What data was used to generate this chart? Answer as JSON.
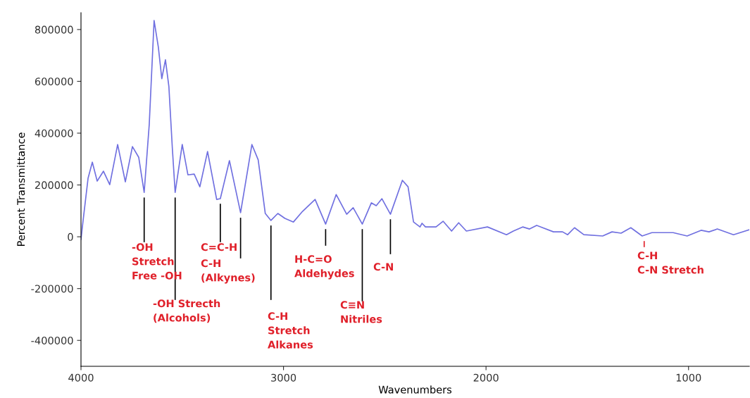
{
  "chart_data": {
    "type": "line",
    "xlabel": "Wavenumbers",
    "ylabel": "Percent Transmittance",
    "xlim": [
      4000,
      700
    ],
    "xticks": [
      4000,
      3000,
      2000,
      1000
    ],
    "ylim": [
      -500000,
      865000
    ],
    "yticks": [
      -400000,
      -200000,
      0,
      200000,
      400000,
      600000,
      800000
    ],
    "grid": false,
    "legend": false,
    "marker": "none",
    "line_style": "solid",
    "series": [
      {
        "color": "#7070e0",
        "x": [
          4000,
          3990,
          3965,
          3944,
          3920,
          3889,
          3858,
          3819,
          3781,
          3746,
          3715,
          3688,
          3663,
          3639,
          3618,
          3601,
          3583,
          3566,
          3549,
          3535,
          3500,
          3472,
          3441,
          3413,
          3375,
          3330,
          3312,
          3267,
          3212,
          3156,
          3125,
          3090,
          3062,
          3028,
          2993,
          2951,
          2906,
          2844,
          2792,
          2740,
          2688,
          2656,
          2611,
          2566,
          2542,
          2514,
          2472,
          2413,
          2385,
          2358,
          2326,
          2316,
          2299,
          2247,
          2212,
          2170,
          2135,
          2097,
          1993,
          1899,
          1865,
          1819,
          1785,
          1750,
          1667,
          1622,
          1597,
          1563,
          1517,
          1424,
          1378,
          1333,
          1285,
          1229,
          1181,
          1076,
          1007,
          938,
          899,
          858,
          778,
          701
        ],
        "values": [
          -10000,
          60000,
          226000,
          288000,
          215000,
          253000,
          201000,
          356000,
          212000,
          348000,
          307000,
          171000,
          433000,
          835000,
          732000,
          610000,
          683000,
          580000,
          343000,
          171000,
          356000,
          239000,
          242000,
          193000,
          329000,
          144000,
          147000,
          294000,
          93000,
          356000,
          297000,
          90000,
          63000,
          90000,
          71000,
          57000,
          98000,
          144000,
          49000,
          163000,
          87000,
          112000,
          49000,
          131000,
          120000,
          147000,
          87000,
          218000,
          193000,
          57000,
          38000,
          52000,
          38000,
          38000,
          60000,
          22000,
          54000,
          22000,
          38000,
          8000,
          22000,
          38000,
          30000,
          44000,
          19000,
          19000,
          8000,
          35000,
          8000,
          3000,
          19000,
          14000,
          35000,
          3000,
          16000,
          16000,
          3000,
          25000,
          19000,
          30000,
          8000,
          27000
        ]
      }
    ],
    "annotations": [
      {
        "text": "-OH\nStretch\nFree -OH",
        "x": 3688,
        "y": 171000
      },
      {
        "text": "-OH Strecth\n(Alcohols)",
        "x": 3535,
        "y": 171000
      },
      {
        "text": "C=C-H",
        "x": 3312,
        "y": 147000
      },
      {
        "text": "C-H\n(Alkynes)",
        "x": 3212,
        "y": 93000
      },
      {
        "text": "C-H\nStretch\nAlkanes",
        "x": 3062,
        "y": 63000
      },
      {
        "text": "H-C=O\nAldehydes",
        "x": 2792,
        "y": 49000
      },
      {
        "text": "C≡N\nNitriles",
        "x": 2611,
        "y": 49000
      },
      {
        "text": "C-N",
        "x": 2472,
        "y": 87000
      },
      {
        "text": "C-H\nC-N Stretch",
        "x": 1219,
        "y": 3000
      }
    ]
  }
}
